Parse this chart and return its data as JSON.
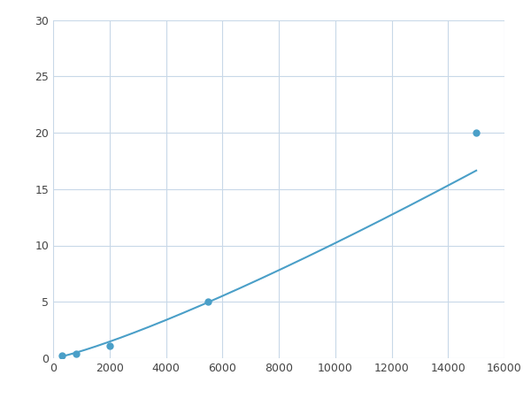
{
  "x_data": [
    300,
    800,
    2000,
    5500,
    15000
  ],
  "y_data": [
    0.2,
    0.4,
    1.1,
    5.0,
    20.0
  ],
  "line_color": "#4a9fc8",
  "marker_color": "#4a9fc8",
  "marker_size": 5,
  "line_width": 1.5,
  "xlim": [
    0,
    16000
  ],
  "ylim": [
    0,
    30
  ],
  "xticks": [
    0,
    2000,
    4000,
    6000,
    8000,
    10000,
    12000,
    14000,
    16000
  ],
  "yticks": [
    0,
    5,
    10,
    15,
    20,
    25,
    30
  ],
  "grid_color": "#c8d8e8",
  "background_color": "#ffffff",
  "figsize": [
    6.0,
    4.5
  ],
  "dpi": 100
}
